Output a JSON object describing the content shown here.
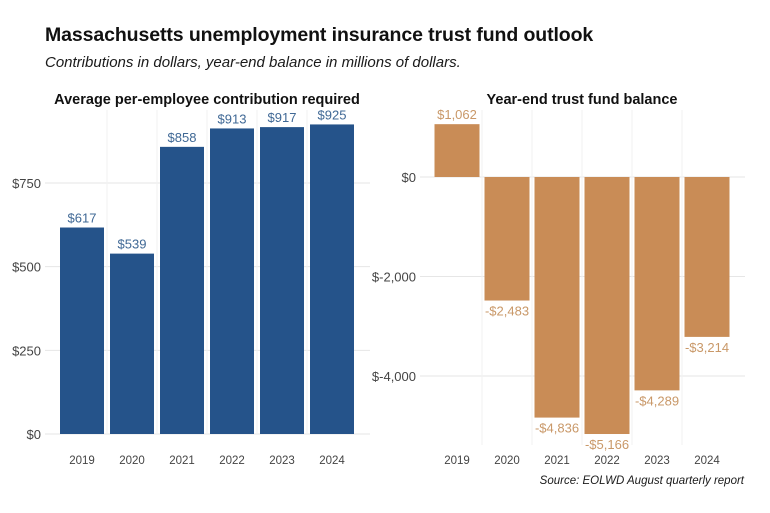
{
  "header": {
    "title": "Massachusetts unemployment insurance trust fund outlook",
    "subtitle": "Contributions in dollars, year-end balance in millions of dollars."
  },
  "footer": {
    "source": "Source: EOLWD August quarterly report"
  },
  "colors": {
    "contribution_bar": "#25538a",
    "contribution_label": "#3f6895",
    "balance_bar": "#c98c56",
    "balance_label": "#c99868",
    "gridline": "#e6e6e6",
    "tick_label": "#444444"
  },
  "chart_data": [
    {
      "type": "bar",
      "title": "Average per-employee contribution required",
      "xlabel": "",
      "ylabel": "",
      "categories": [
        "2019",
        "2020",
        "2021",
        "2022",
        "2023",
        "2024"
      ],
      "values": [
        617,
        539,
        858,
        913,
        917,
        925
      ],
      "data_labels": [
        "$617",
        "$539",
        "$858",
        "$913",
        "$917",
        "$925"
      ],
      "yticks": [
        0,
        250,
        500,
        750
      ],
      "ytick_labels": [
        "$0",
        "$250",
        "$500",
        "$750"
      ],
      "ylim": [
        0,
        1000
      ],
      "grid": true,
      "legend": "none"
    },
    {
      "type": "bar",
      "title": "Year-end trust fund balance",
      "xlabel": "",
      "ylabel": "",
      "categories": [
        "2019",
        "2020",
        "2021",
        "2022",
        "2023",
        "2024"
      ],
      "values": [
        1062,
        -2483,
        -4836,
        -5166,
        -4289,
        -3214
      ],
      "data_labels": [
        "$1,062",
        "-$2,483",
        "-$4,836",
        "-$5,166",
        "-$4,289",
        "-$3,214"
      ],
      "yticks": [
        0,
        -2000,
        -4000
      ],
      "ytick_labels": [
        "$0",
        "$-2,000",
        "$-4,000"
      ],
      "ylim": [
        -5400,
        1300
      ],
      "grid": true,
      "legend": "none"
    }
  ]
}
